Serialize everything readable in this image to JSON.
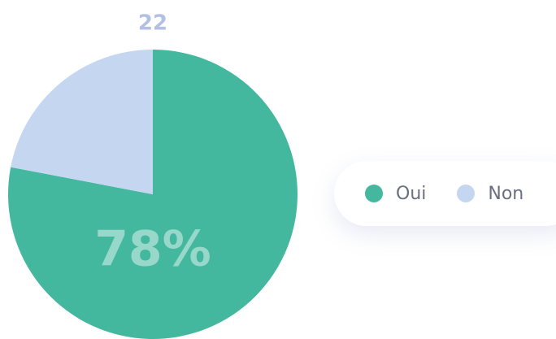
{
  "chart_data": {
    "type": "pie",
    "categories": [
      "Oui",
      "Non"
    ],
    "values": [
      78,
      22
    ],
    "value_labels": [
      "78%",
      "22"
    ],
    "colors": [
      "#44b89e",
      "#c5d6f0"
    ],
    "legend": "right"
  }
}
